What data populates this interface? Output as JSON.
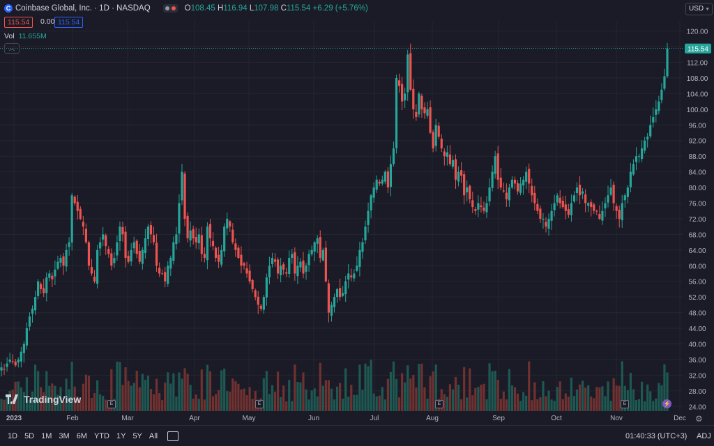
{
  "header": {
    "symbol": "Coinbase Global, Inc. · 1D · NASDAQ",
    "logo_letter": "C",
    "ohlc": {
      "o_label": "O",
      "o": "108.45",
      "h_label": "H",
      "h": "116.94",
      "l_label": "L",
      "l": "107.98",
      "c_label": "C",
      "c": "115.54",
      "change": "+6.29 (+5.76%)"
    }
  },
  "price_boxes": {
    "left": "115.54",
    "middle": "0.00",
    "right": "115.54"
  },
  "volume": {
    "label": "Vol",
    "value": "11.655M"
  },
  "currency": "USD",
  "last_price_label": "115.54",
  "brand": "TradingView",
  "bottom_bar": {
    "ranges": [
      "1D",
      "5D",
      "1M",
      "3M",
      "6M",
      "YTD",
      "1Y",
      "5Y",
      "All"
    ],
    "time": "01:40:33 (UTC+3)",
    "adj": "ADJ"
  },
  "colors": {
    "up": "#26a69a",
    "down": "#ef5350",
    "background": "#1a1b26",
    "accent": "#2962ff"
  },
  "chart_data": {
    "type": "candlestick",
    "y_ticks": [
      24,
      28,
      32,
      36,
      40,
      44,
      48,
      52,
      56,
      60,
      64,
      68,
      72,
      76,
      80,
      84,
      88,
      92,
      96,
      100,
      104,
      108,
      112,
      116,
      120
    ],
    "ylim": [
      22.8,
      122.6
    ],
    "x_labels": [
      "2023",
      "Feb",
      "Mar",
      "Apr",
      "May",
      "Jun",
      "Jul",
      "Aug",
      "Sep",
      "Oct",
      "Nov",
      "Dec"
    ],
    "last": {
      "open": 108.45,
      "high": 116.94,
      "low": 107.98,
      "close": 115.54,
      "volume": "11.655M"
    },
    "closes": [
      34,
      33.5,
      35,
      36,
      35.5,
      34.5,
      36,
      38,
      40,
      44,
      47,
      49,
      52,
      56,
      54,
      53,
      57,
      58,
      56.5,
      59,
      61,
      62,
      60,
      64,
      66,
      78,
      76,
      74,
      72,
      70,
      66,
      60,
      58,
      56,
      64,
      66,
      68,
      65,
      63,
      60,
      62,
      66,
      70,
      68,
      62,
      61,
      64,
      66,
      63,
      61,
      64,
      67,
      70,
      68,
      66,
      60,
      58,
      58,
      56,
      60,
      62,
      66,
      68,
      76,
      84,
      72,
      67,
      69,
      67,
      66,
      68,
      63,
      62,
      70,
      67,
      65,
      62,
      61,
      64,
      70,
      72,
      70,
      66,
      64,
      62,
      60,
      60,
      58,
      56,
      54,
      52,
      50,
      49,
      52,
      57,
      60,
      62,
      61,
      58,
      60,
      59,
      58,
      62,
      63,
      58,
      60,
      61,
      58,
      60,
      63,
      64,
      66,
      67,
      62,
      64,
      56,
      48,
      50,
      52,
      54,
      52,
      53,
      56,
      58,
      57,
      58,
      60,
      64,
      66,
      70,
      74,
      78,
      80,
      82,
      81,
      82,
      84,
      80,
      86,
      90,
      108,
      106,
      102,
      104,
      114,
      105,
      100,
      98,
      104,
      100,
      99,
      100,
      94,
      90,
      96,
      93,
      90,
      88,
      89,
      86,
      87,
      82,
      84,
      83,
      78,
      80,
      77,
      75,
      74,
      76,
      75,
      74,
      76,
      80,
      84,
      88,
      82,
      80,
      79,
      77,
      80,
      82,
      81,
      79,
      81,
      82,
      84,
      81,
      78,
      76,
      74,
      72,
      72,
      70,
      72,
      74,
      76,
      78,
      76,
      75,
      74,
      73,
      76,
      78,
      80,
      78,
      79,
      76,
      76,
      75,
      74,
      74,
      72,
      74,
      76,
      78,
      80,
      76,
      74,
      72,
      76,
      78,
      80,
      84,
      86,
      88,
      88,
      90,
      92,
      93,
      96,
      98,
      100,
      102,
      105,
      108.45,
      115.54
    ]
  }
}
